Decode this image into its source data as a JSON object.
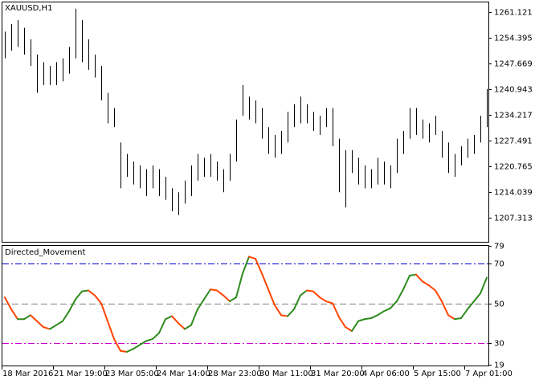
{
  "chart_data": [
    {
      "type": "range-bar",
      "title": "XAUUSD,H1",
      "color": "#000000",
      "high": [
        1256,
        1258,
        1259,
        1257,
        1254,
        1250,
        1248,
        1247,
        1248,
        1249,
        1252,
        1262,
        1259,
        1254,
        1250,
        1247,
        1240,
        1236,
        1227,
        1224,
        1222,
        1221,
        1220,
        1221,
        1220,
        1218,
        1215,
        1214,
        1217,
        1221,
        1224,
        1223,
        1224,
        1222,
        1220,
        1224,
        1233,
        1242,
        1239,
        1238,
        1236,
        1231,
        1229,
        1230,
        1235,
        1237,
        1239,
        1237,
        1235,
        1234,
        1236,
        1236,
        1228,
        1225,
        1225,
        1223,
        1221,
        1220,
        1223,
        1222,
        1221,
        1228,
        1230,
        1236,
        1236,
        1233,
        1232,
        1234,
        1230,
        1227,
        1224,
        1226,
        1228,
        1229,
        1234,
        1241
      ],
      "low": [
        1249,
        1251,
        1252,
        1250,
        1247,
        1240,
        1242,
        1242,
        1242,
        1243,
        1245,
        1249,
        1248,
        1246,
        1244,
        1238,
        1232,
        1231,
        1215,
        1218,
        1216,
        1215,
        1213,
        1215,
        1213,
        1212,
        1209,
        1208,
        1211,
        1213,
        1217,
        1218,
        1218,
        1217,
        1214,
        1217,
        1222,
        1234,
        1233,
        1232,
        1228,
        1224,
        1223,
        1224,
        1227,
        1231,
        1232,
        1232,
        1230,
        1229,
        1231,
        1226,
        1214,
        1210,
        1219,
        1216,
        1215,
        1215,
        1216,
        1216,
        1215,
        1219,
        1224,
        1228,
        1229,
        1228,
        1227,
        1229,
        1223,
        1219,
        1218,
        1221,
        1223,
        1224,
        1227,
        1231
      ],
      "ylim": [
        1201.01,
        1263.85
      ],
      "yticks": [
        1261.121,
        1254.395,
        1247.669,
        1240.943,
        1234.217,
        1227.491,
        1220.765,
        1214.039,
        1207.313
      ]
    },
    {
      "type": "line",
      "title": "Directed_Movement",
      "up_color": "#2e8b1e",
      "down_color": "#ff4500",
      "categories": [
        "18 Mar 2016",
        null,
        null,
        null,
        null,
        null,
        null,
        null,
        "21 Mar 19:00",
        null,
        null,
        null,
        null,
        null,
        null,
        null,
        "23 Mar 05:00",
        null,
        null,
        null,
        null,
        null,
        null,
        null,
        "24 Mar 14:00",
        null,
        null,
        null,
        null,
        null,
        null,
        null,
        "28 Mar 23:00",
        null,
        null,
        null,
        null,
        null,
        null,
        null,
        "30 Mar 11:00",
        null,
        null,
        null,
        null,
        null,
        null,
        null,
        "31 Mar 20:00",
        null,
        null,
        null,
        null,
        null,
        null,
        null,
        "4 Apr 06:00",
        null,
        null,
        null,
        null,
        null,
        null,
        null,
        "5 Apr 15:00",
        null,
        null,
        null,
        null,
        null,
        null,
        null,
        "7 Apr 01:00",
        null,
        null,
        null
      ],
      "values": [
        53,
        47,
        42,
        42,
        44,
        41,
        38,
        37,
        39,
        41,
        46,
        52,
        56,
        56.5,
        54,
        50,
        41,
        32,
        26,
        25.5,
        27,
        29,
        31,
        32,
        35,
        42,
        43.5,
        40,
        37,
        39,
        47,
        52,
        57,
        56.5,
        54,
        51,
        53,
        65,
        73.5,
        72.5,
        65,
        57,
        49,
        44,
        43.5,
        47,
        54,
        56.5,
        56,
        53,
        51,
        50,
        43,
        38,
        36,
        41,
        42,
        42.5,
        44,
        46,
        47.5,
        51,
        57,
        64,
        64.5,
        61,
        59,
        56.5,
        51,
        44,
        42,
        42.5,
        47,
        51,
        55,
        63
      ],
      "ylim": [
        19,
        79
      ],
      "yticks": [
        79,
        70,
        50,
        30,
        19
      ],
      "levels": [
        70,
        50,
        30
      ],
      "level_colors": [
        "#0000cd",
        "#808080",
        "#cc00cc"
      ]
    }
  ]
}
